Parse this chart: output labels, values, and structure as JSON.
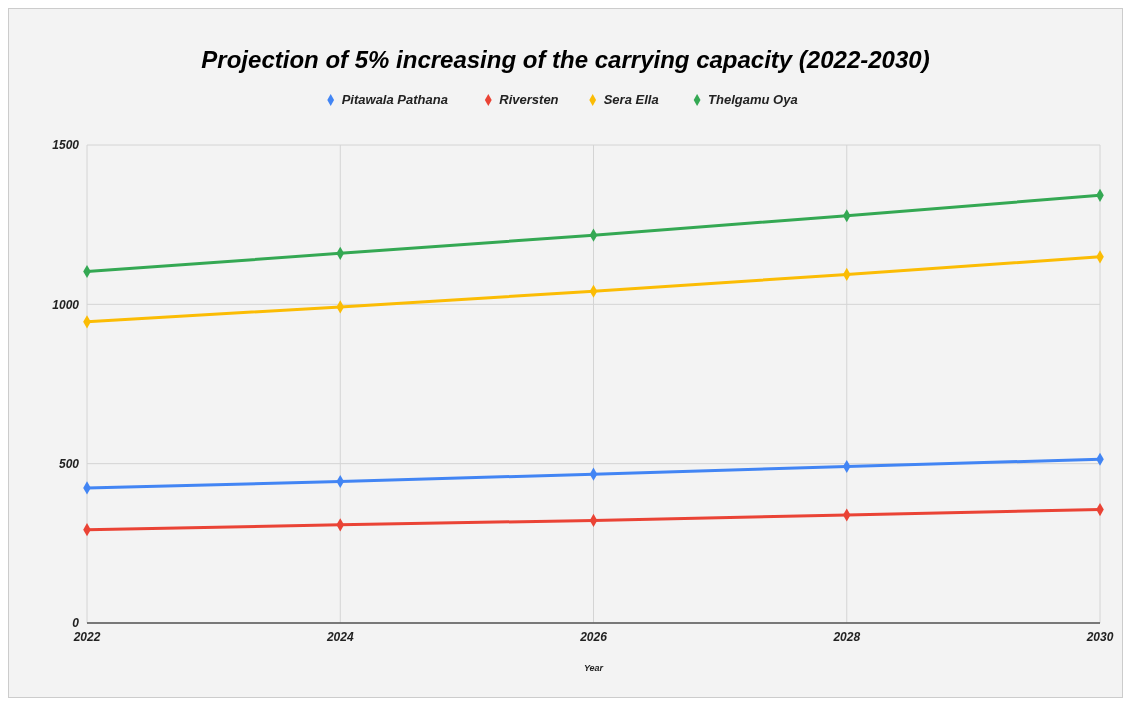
{
  "chart_data": {
    "type": "line",
    "title": "Projection of 5% increasing of the carrying capacity (2022-2030)",
    "xlabel": "Year",
    "x": [
      2022,
      2024,
      2026,
      2028,
      2030
    ],
    "series": [
      {
        "name": "Pitawala Pathana",
        "color": "#4285f4",
        "values": [
          424,
          444,
          467,
          491,
          514
        ]
      },
      {
        "name": "Riversten",
        "color": "#ea4335",
        "values": [
          293,
          308,
          322,
          339,
          356
        ]
      },
      {
        "name": "Sera Ella",
        "color": "#fbbc04",
        "values": [
          945,
          992,
          1041,
          1094,
          1149
        ]
      },
      {
        "name": "Thelgamu Oya",
        "color": "#34a853",
        "values": [
          1103,
          1160,
          1217,
          1278,
          1342
        ]
      }
    ],
    "xlim": [
      2022,
      2030
    ],
    "xticks": [
      2022,
      2024,
      2026,
      2028,
      2030
    ],
    "ylim": [
      0,
      1500
    ],
    "yticks": [
      0,
      500,
      1000,
      1500
    ],
    "grid": true,
    "legend": "top",
    "marker": "diamond",
    "line_style": "solid"
  }
}
